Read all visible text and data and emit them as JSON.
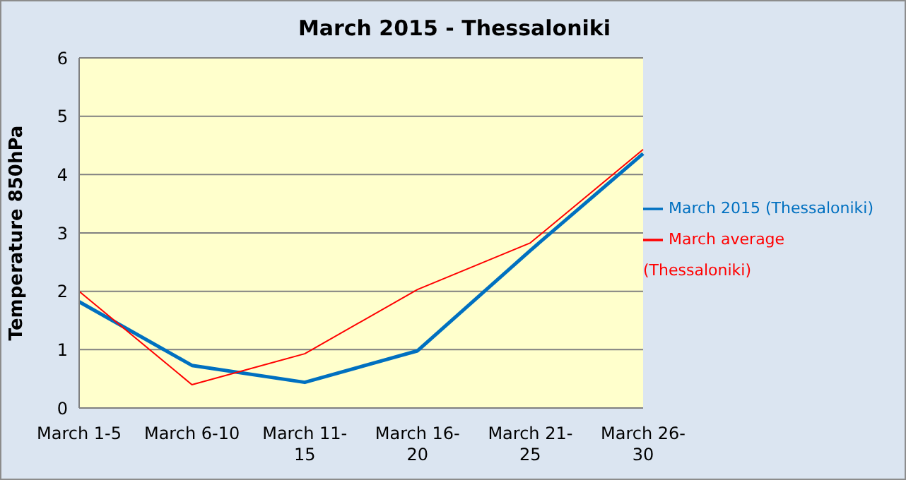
{
  "chart_data": {
    "type": "line",
    "title": "March 2015 - Thessaloniki",
    "ylabel": "Temperature 850hPa",
    "categories": [
      "March 1-5",
      "March 6-10",
      "March 11-15",
      "March 16-20",
      "March 21-25",
      "March 26-30"
    ],
    "series": [
      {
        "name": "March 2015 (Thessaloniki)",
        "color": "#0070c0",
        "values": [
          1.82,
          0.73,
          0.44,
          0.98,
          2.7,
          4.36
        ]
      },
      {
        "name": "March average (Thessaloniki)",
        "color": "#ff0000",
        "values": [
          2.0,
          0.4,
          0.93,
          2.03,
          2.83,
          4.43
        ]
      }
    ],
    "ylim": [
      0,
      6
    ],
    "yticks": [
      0,
      1,
      2,
      3,
      4,
      5,
      6
    ],
    "grid": "y",
    "legend": "right",
    "marker": "none",
    "line_style": "solid"
  }
}
